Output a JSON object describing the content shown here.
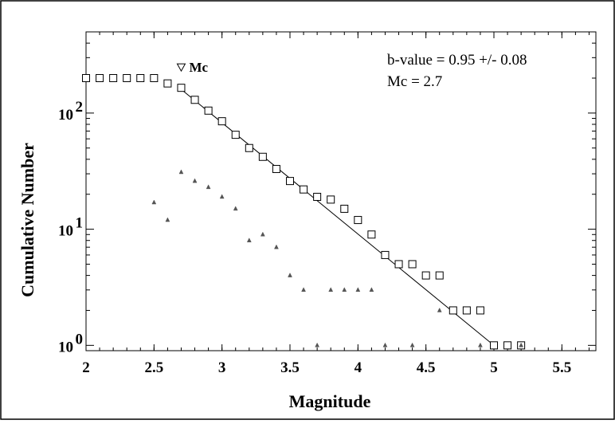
{
  "chart_data": {
    "type": "scatter",
    "xlabel": "Magnitude",
    "ylabel": "Cumulative Number",
    "y_scale": "log",
    "xlim": [
      2.0,
      5.75
    ],
    "ylim": [
      0.9,
      500
    ],
    "x_ticks": [
      2,
      2.5,
      3,
      3.5,
      4,
      4.5,
      5,
      5.5
    ],
    "x_tick_labels": [
      "2",
      "2.5",
      "3",
      "3.5",
      "4",
      "4.5",
      "5",
      "5.5"
    ],
    "y_ticks": [
      1,
      10,
      100
    ],
    "y_tick_labels": [
      {
        "base": "10",
        "exp": "0"
      },
      {
        "base": "10",
        "exp": "1"
      },
      {
        "base": "10",
        "exp": "2"
      }
    ],
    "annotations": {
      "b_value": "b-value = 0.95 +/- 0.08",
      "mc_text": "Mc = 2.7",
      "mc_marker_label": "Mc"
    },
    "mc_marker": {
      "x": 2.7,
      "y": 245
    },
    "fit_line": {
      "x": [
        2.7,
        5.0
      ],
      "y": [
        160,
        1.0
      ]
    },
    "series": [
      {
        "marker": "square",
        "x": [
          2.0,
          2.1,
          2.2,
          2.3,
          2.4,
          2.5,
          2.6,
          2.7,
          2.8,
          2.9,
          3.0,
          3.1,
          3.2,
          3.3,
          3.4,
          3.5,
          3.6,
          3.7,
          3.8,
          3.9,
          4.0,
          4.1,
          4.2,
          4.3,
          4.4,
          4.5,
          4.6,
          4.7,
          4.8,
          4.9,
          5.0,
          5.1,
          5.2
        ],
        "y": [
          200,
          200,
          200,
          200,
          200,
          200,
          180,
          165,
          130,
          105,
          85,
          65,
          50,
          42,
          33,
          26,
          22,
          19,
          18,
          15,
          12,
          9,
          6,
          5,
          5,
          4,
          4,
          2,
          2,
          2,
          1,
          1,
          1
        ]
      },
      {
        "marker": "triangle",
        "x": [
          2.5,
          2.6,
          2.7,
          2.8,
          2.9,
          3.0,
          3.1,
          3.2,
          3.3,
          3.4,
          3.5,
          3.6,
          3.7,
          3.8,
          3.9,
          4.0,
          4.1,
          4.2,
          4.4,
          4.6,
          4.9,
          5.2
        ],
        "y": [
          17,
          12,
          31,
          26,
          23,
          19,
          15,
          8,
          9,
          7,
          4,
          3,
          1,
          3,
          3,
          3,
          3,
          1,
          1,
          2,
          1,
          1
        ]
      }
    ]
  }
}
